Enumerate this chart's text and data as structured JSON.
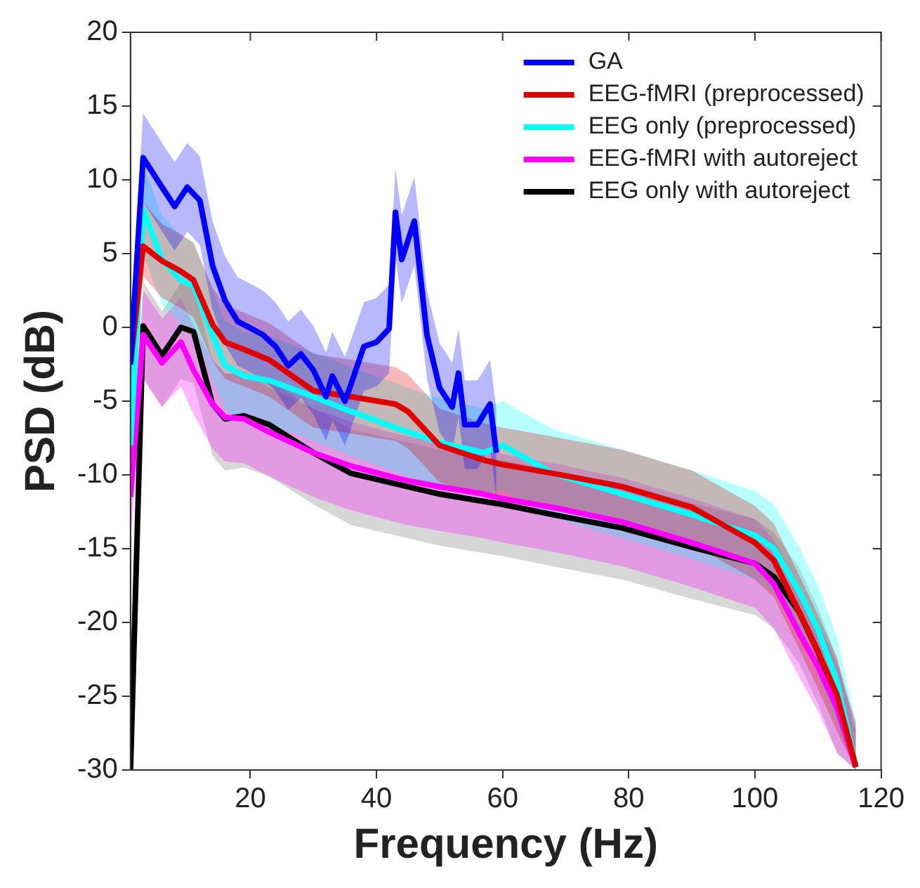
{
  "chart_data": {
    "type": "line",
    "xlabel": "Frequency (Hz)",
    "ylabel": "PSD (dB)",
    "xlim": [
      1,
      120
    ],
    "xticks": [
      20,
      40,
      60,
      80,
      100,
      120
    ],
    "ylim": [
      -30,
      20
    ],
    "yticks": [
      -30,
      -25,
      -20,
      -15,
      -10,
      -5,
      0,
      5,
      10,
      15,
      20
    ],
    "grid": false,
    "legend": "top right",
    "marker": "none",
    "line_style": "solid",
    "series": [
      {
        "name": "GA",
        "color": "#0000ff",
        "x": [
          1,
          3,
          6,
          8,
          10,
          12,
          14,
          16,
          18,
          22,
          24,
          26,
          28,
          30,
          32,
          33,
          35,
          36,
          38,
          40,
          42,
          43,
          44,
          46,
          48,
          50,
          52,
          53,
          54,
          56,
          58,
          59
        ],
        "values": [
          -2.5,
          11.5,
          9.5,
          8.2,
          9.5,
          8.6,
          4.2,
          1.8,
          0.4,
          -0.5,
          -1.3,
          -2.6,
          -1.8,
          -2.9,
          -4.7,
          -3.3,
          -5,
          -3.8,
          -1.3,
          -1,
          -0.1,
          7.8,
          4.6,
          7.2,
          -0.5,
          -4.1,
          -5.4,
          -3.1,
          -6.6,
          -6.6,
          -5.2,
          -8.5
        ],
        "upper": [
          0.5,
          14.5,
          12.5,
          11.2,
          12.5,
          11.6,
          7.2,
          4.8,
          3.4,
          2.5,
          1.7,
          0.4,
          1.2,
          0.1,
          -1.7,
          -0.3,
          -2,
          -0.8,
          1.7,
          2,
          2.9,
          10.8,
          7.6,
          10.2,
          2.5,
          -1.1,
          -2.4,
          -0.1,
          -3.6,
          -3.6,
          -2.2,
          -5.5
        ],
        "lower": [
          -5.5,
          8.5,
          6.5,
          5.2,
          6.5,
          5.6,
          1.2,
          -1.2,
          -2.6,
          -3.5,
          -4.3,
          -5.6,
          -4.8,
          -5.9,
          -7.7,
          -6.3,
          -8,
          -6.8,
          -4.3,
          -4,
          -3.1,
          4.8,
          1.6,
          4.2,
          -3.5,
          -7.1,
          -8.4,
          -6.1,
          -9.6,
          -9.6,
          -8.2,
          -11.5
        ]
      },
      {
        "name": "EEG-fMRI (preprocessed)",
        "color": "#e00000",
        "x": [
          1,
          3,
          6,
          9,
          11,
          14,
          16,
          19,
          23,
          30,
          36,
          43,
          45,
          50,
          57,
          60,
          68,
          79,
          90,
          100,
          103,
          107,
          110,
          113,
          116
        ],
        "values": [
          -2.5,
          5.5,
          4.5,
          3.8,
          3.2,
          0.2,
          -1,
          -1.5,
          -2.2,
          -4.3,
          -4.7,
          -5.2,
          -5.7,
          -8,
          -9,
          -9.3,
          -9.9,
          -10.8,
          -12.2,
          -14.6,
          -15.8,
          -19.3,
          -22,
          -24.9,
          -29.8
        ],
        "upper": [
          0,
          8.5,
          7,
          6.3,
          5.7,
          2.7,
          1.5,
          1,
          0.3,
          -1.8,
          -2.2,
          -2.7,
          -3.2,
          -5.5,
          -6.5,
          -6.8,
          -7.4,
          -8.3,
          -9.7,
          -12.1,
          -13.3,
          -16.8,
          -19.5,
          -22.4,
          -27.3
        ],
        "lower": [
          -5,
          3.5,
          2,
          1.3,
          0.7,
          -2.3,
          -3.5,
          -4,
          -4.7,
          -6.8,
          -7.2,
          -7.7,
          -8.2,
          -10.5,
          -11.5,
          -11.8,
          -12.4,
          -13.3,
          -14.7,
          -17.1,
          -18.3,
          -21.8,
          -24.5,
          -27.4,
          -30
        ]
      },
      {
        "name": "EEG only (preprocessed)",
        "color": "#00ffff",
        "x": [
          1,
          3,
          6,
          9,
          11,
          14,
          16,
          19,
          23,
          30,
          36,
          43,
          45,
          50,
          57,
          60,
          68,
          79,
          90,
          100,
          103,
          107,
          110,
          113,
          116
        ],
        "values": [
          -8,
          8,
          4.6,
          3.2,
          2.8,
          -0.5,
          -2.6,
          -3.3,
          -3.6,
          -4.7,
          -5.7,
          -6.8,
          -7.1,
          -7.8,
          -8.5,
          -8,
          -9.9,
          -11.3,
          -12.7,
          -14.1,
          -15,
          -17.9,
          -20.5,
          -24,
          -29.8
        ],
        "upper": [
          -5,
          11,
          7.6,
          6.2,
          5.8,
          2.5,
          0.4,
          -0.3,
          -0.6,
          -1.7,
          -2.7,
          -3.8,
          -4.1,
          -4.8,
          -5.5,
          -5,
          -6.9,
          -8.3,
          -9.7,
          -11.1,
          -12,
          -14.9,
          -17.5,
          -21,
          -26.8
        ],
        "lower": [
          -11,
          5,
          1.6,
          0.2,
          -0.2,
          -3.5,
          -5.6,
          -6.3,
          -6.6,
          -7.7,
          -8.7,
          -9.8,
          -10.1,
          -10.8,
          -11.5,
          -11,
          -12.9,
          -14.3,
          -15.7,
          -17.1,
          -18,
          -20.9,
          -23.5,
          -27,
          -30
        ]
      },
      {
        "name": "EEG-fMRI with autoreject",
        "color": "#ff00ff",
        "x": [
          1,
          3,
          6,
          9,
          11,
          14,
          16,
          19,
          23,
          30,
          36,
          43,
          45,
          50,
          57,
          60,
          68,
          79,
          90,
          100,
          103,
          107,
          110,
          113,
          116
        ],
        "values": [
          -11.5,
          -0.5,
          -2.4,
          -1,
          -2.9,
          -5.2,
          -6.1,
          -6.2,
          -7.1,
          -8.5,
          -9.4,
          -10.2,
          -10.4,
          -10.8,
          -11.3,
          -11.6,
          -12.2,
          -13.2,
          -14.6,
          -16,
          -17.4,
          -20.7,
          -23,
          -25.8,
          -29.8
        ],
        "upper": [
          -8.5,
          2.5,
          0.6,
          2,
          0.1,
          -2.2,
          -3.1,
          -3.2,
          -4.1,
          -5.5,
          -6.4,
          -7.2,
          -7.4,
          -7.8,
          -8.3,
          -8.6,
          -9.2,
          -10.2,
          -11.6,
          -13,
          -14.4,
          -17.7,
          -20,
          -22.8,
          -26.8
        ],
        "lower": [
          -14.5,
          -3.5,
          -5.4,
          -4,
          -5.9,
          -8.2,
          -9.1,
          -9.2,
          -10.1,
          -11.5,
          -12.4,
          -13.2,
          -13.4,
          -13.8,
          -14.3,
          -14.6,
          -15.2,
          -16.2,
          -17.6,
          -19,
          -20.4,
          -23.7,
          -26,
          -28.8,
          -30
        ]
      },
      {
        "name": "EEG only with autoreject",
        "color": "#000000",
        "x": [
          1,
          3,
          6,
          9,
          11,
          14,
          16,
          19,
          23,
          30,
          36,
          43,
          45,
          50,
          57,
          60,
          68,
          79,
          90,
          100,
          103,
          107,
          110,
          113,
          116
        ],
        "values": [
          -30,
          0.1,
          -1.9,
          0,
          -0.3,
          -5.2,
          -6.2,
          -6,
          -6.6,
          -8.5,
          -9.9,
          -10.6,
          -10.8,
          -11.3,
          -11.8,
          -12,
          -12.7,
          -13.6,
          -14.9,
          -16,
          -16.9,
          -19.3,
          -22,
          -25.4,
          -29.8
        ],
        "upper": [
          -27,
          3.1,
          1.1,
          3,
          2.7,
          -2.2,
          -3.2,
          -3,
          -3.6,
          -5.5,
          -6.9,
          -7.6,
          -7.8,
          -8.3,
          -8.8,
          -9,
          -9.7,
          -10.6,
          -11.9,
          -13,
          -13.9,
          -16.3,
          -19,
          -22.4,
          -26.8
        ],
        "lower": [
          -30,
          -3.4,
          -5.4,
          -3.5,
          -3.8,
          -8.7,
          -9.7,
          -9.5,
          -10.1,
          -12,
          -13.4,
          -14.1,
          -14.3,
          -14.8,
          -15.3,
          -15.5,
          -16.2,
          -17.1,
          -18.4,
          -19.5,
          -20.4,
          -22.8,
          -25.5,
          -28.9,
          -30
        ]
      }
    ]
  }
}
